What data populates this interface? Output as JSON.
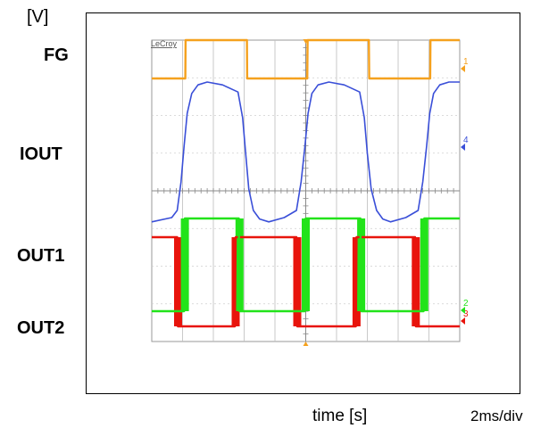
{
  "figure": {
    "y_unit": "[V]",
    "x_label": "time [s]",
    "time_per_div": "2ms/div",
    "scope_brand": "LeCroy",
    "channel_labels": [
      "FG",
      "IOUT",
      "OUT1",
      "OUT2"
    ]
  },
  "chart_data": {
    "type": "line",
    "x_unit": "ms",
    "x_range": [
      0,
      20
    ],
    "x_divisions": 10,
    "y_divisions": 8,
    "grid": true,
    "series": [
      {
        "name": "FG",
        "color": "#f5a11e",
        "marker_label": "1",
        "marker_color": "#f5a11e",
        "x": [
          0.0,
          2.18,
          2.2,
          6.18,
          6.2,
          10.1,
          10.12,
          14.1,
          14.12,
          18.08,
          18.1,
          20.0
        ],
        "y": [
          0,
          0,
          1,
          1,
          0,
          0,
          1,
          1,
          0,
          0,
          1,
          1
        ]
      },
      {
        "name": "IOUT",
        "color": "#3a4fd8",
        "marker_label": "4",
        "marker_color": "#3a4fd8",
        "x": [
          0.0,
          1.3,
          1.65,
          1.9,
          2.1,
          2.3,
          2.6,
          3.0,
          3.6,
          4.6,
          5.6,
          5.9,
          6.1,
          6.3,
          6.6,
          7.0,
          7.6,
          8.6,
          9.4,
          9.7,
          9.95,
          10.15,
          10.4,
          10.8,
          11.5,
          12.5,
          13.5,
          13.8,
          14.0,
          14.25,
          14.6,
          15.0,
          15.5,
          16.5,
          17.3,
          17.6,
          17.85,
          18.05,
          18.3,
          18.7,
          19.3,
          20.0
        ],
        "y": [
          0.02,
          0.05,
          0.1,
          0.3,
          0.55,
          0.78,
          0.92,
          0.98,
          1.0,
          0.98,
          0.93,
          0.75,
          0.5,
          0.25,
          0.1,
          0.04,
          0.02,
          0.05,
          0.1,
          0.3,
          0.55,
          0.78,
          0.92,
          0.98,
          1.0,
          0.98,
          0.93,
          0.75,
          0.5,
          0.25,
          0.1,
          0.04,
          0.02,
          0.05,
          0.1,
          0.3,
          0.55,
          0.78,
          0.92,
          0.98,
          1.0,
          1.0
        ]
      },
      {
        "name": "OUT1",
        "color": "#e8140c",
        "marker_label": "3",
        "marker_color": "#e8140c",
        "x": [
          0.0,
          1.65,
          1.7,
          5.4,
          5.45,
          9.4,
          9.45,
          13.25,
          13.3,
          17.1,
          17.15,
          20.0
        ],
        "y": [
          1,
          1,
          0,
          0,
          1,
          1,
          0,
          0,
          1,
          1,
          0,
          0
        ],
        "burst_edges_ms": [
          1.68,
          5.42,
          9.42,
          13.27,
          17.12
        ]
      },
      {
        "name": "OUT2",
        "color": "#22e31a",
        "marker_label": "2",
        "marker_color": "#22e31a",
        "x": [
          0.0,
          2.1,
          2.15,
          5.65,
          5.7,
          9.95,
          10.0,
          13.55,
          13.6,
          17.65,
          17.7,
          20.0
        ],
        "y": [
          0,
          0,
          1,
          1,
          0,
          0,
          1,
          1,
          0,
          0,
          1,
          1
        ],
        "burst_edges_ms": [
          2.12,
          5.67,
          9.97,
          13.57,
          17.67
        ]
      }
    ]
  }
}
